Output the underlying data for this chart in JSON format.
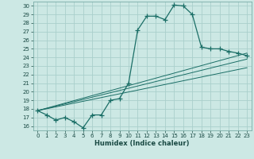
{
  "xlabel": "Humidex (Indice chaleur)",
  "bg_color": "#cce8e4",
  "grid_color": "#aacfcc",
  "line_color": "#1a6e66",
  "xlim": [
    -0.5,
    23.5
  ],
  "ylim": [
    15.5,
    30.5
  ],
  "xticks": [
    0,
    1,
    2,
    3,
    4,
    5,
    6,
    7,
    8,
    9,
    10,
    11,
    12,
    13,
    14,
    15,
    16,
    17,
    18,
    19,
    20,
    21,
    22,
    23
  ],
  "yticks": [
    16,
    17,
    18,
    19,
    20,
    21,
    22,
    23,
    24,
    25,
    26,
    27,
    28,
    29,
    30
  ],
  "main_line": {
    "x": [
      0,
      1,
      2,
      3,
      4,
      5,
      6,
      7,
      8,
      9,
      10,
      11,
      12,
      13,
      14,
      15,
      16,
      17,
      18,
      19,
      20,
      21,
      22,
      23
    ],
    "y": [
      17.8,
      17.3,
      16.7,
      17.0,
      16.5,
      15.8,
      17.3,
      17.3,
      19.0,
      19.2,
      21.0,
      27.2,
      28.8,
      28.8,
      28.4,
      30.1,
      30.0,
      29.0,
      25.2,
      25.0,
      25.0,
      24.7,
      24.5,
      24.2
    ]
  },
  "trend_lines": [
    {
      "x": [
        0,
        23
      ],
      "y": [
        17.8,
        22.8
      ]
    },
    {
      "x": [
        0,
        23
      ],
      "y": [
        17.8,
        23.8
      ]
    },
    {
      "x": [
        0,
        23
      ],
      "y": [
        17.8,
        24.5
      ]
    }
  ]
}
